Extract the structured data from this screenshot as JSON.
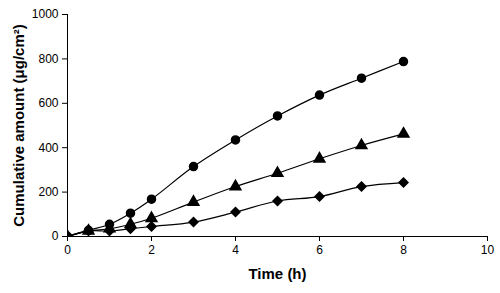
{
  "chart_data": {
    "type": "line",
    "x_label": "Time (h)",
    "y_label": "Cumulative amount (μg/cm²)",
    "x": [
      0,
      0.5,
      1,
      1.5,
      2,
      3,
      4,
      5,
      6,
      7,
      8
    ],
    "series": [
      {
        "color": "#000000",
        "marker": "circle",
        "values": [
          0,
          28,
          55,
          105,
          168,
          315,
          435,
          543,
          637,
          713,
          788
        ]
      },
      {
        "color": "#000000",
        "marker": "triangle",
        "values": [
          0,
          25,
          35,
          55,
          82,
          155,
          225,
          285,
          350,
          410,
          462
        ]
      },
      {
        "color": "#000000",
        "marker": "diamond",
        "values": [
          0,
          25,
          25,
          35,
          45,
          65,
          110,
          160,
          180,
          225,
          243
        ]
      }
    ],
    "xlim": [
      0,
      10
    ],
    "xticks": [
      0,
      2,
      4,
      6,
      8,
      10
    ],
    "ylim": [
      0,
      1000
    ],
    "yticks": [
      0,
      200,
      400,
      600,
      800,
      1000
    ],
    "grid": false
  }
}
